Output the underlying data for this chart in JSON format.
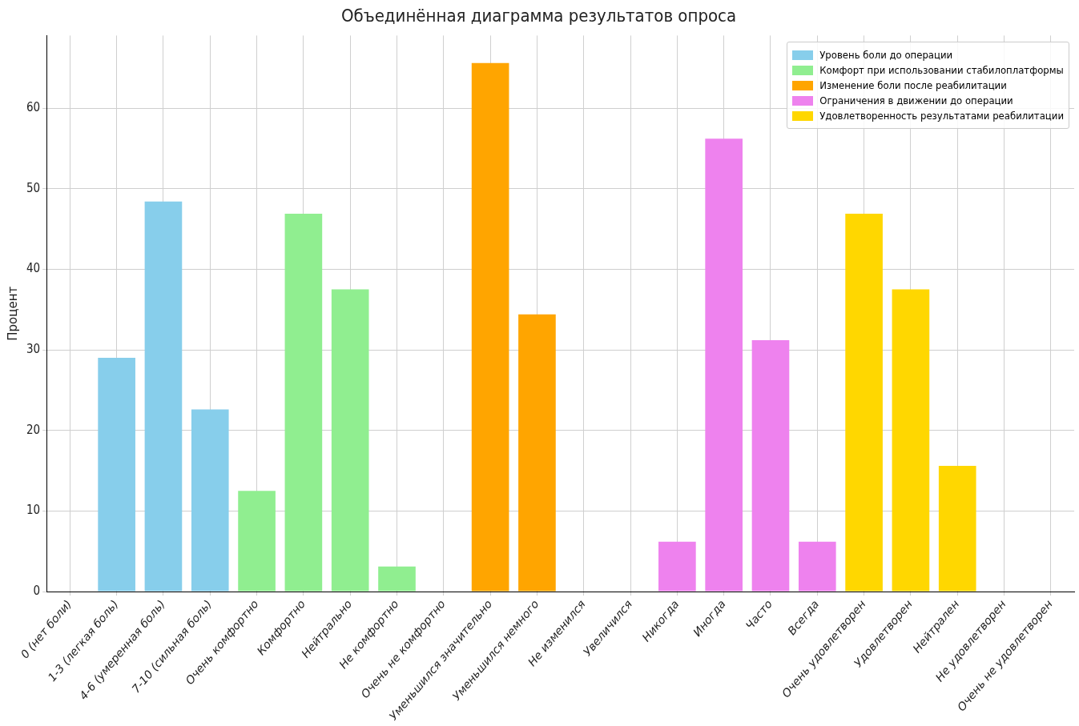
{
  "chart_data": {
    "type": "bar",
    "title": "Объединённая диаграмма результатов опроса",
    "ylabel": "Процент",
    "categories": [
      "0 (нет боли)",
      "1-3 (легкая боль)",
      "4-6 (умеренная боль)",
      "7-10 (сильная боль)",
      "Очень комфортно",
      "Комфортно",
      "Нейтрально",
      "Не комфортно",
      "Очень не комфортно",
      "Уменьшился значительно",
      "Уменьшился немного",
      "Не изменился",
      "Увеличился",
      "Никогда",
      "Иногда",
      "Часто",
      "Всегда",
      "Очень удовлетворен",
      "Удовлетворен",
      "Нейтрален",
      "Не удовлетворен",
      "Очень не удовлетворен"
    ],
    "series": [
      {
        "name": "Уровень боли до операции",
        "color": "#87ceeb",
        "values": [
          0,
          29.0,
          48.4,
          22.6,
          null,
          null,
          null,
          null,
          null,
          null,
          null,
          null,
          null,
          null,
          null,
          null,
          null,
          null,
          null,
          null,
          null,
          null
        ]
      },
      {
        "name": "Комфорт при использовании стабилоплатформы",
        "color": "#90ee90",
        "values": [
          null,
          null,
          null,
          null,
          12.5,
          46.9,
          37.5,
          3.1,
          0,
          null,
          null,
          null,
          null,
          null,
          null,
          null,
          null,
          null,
          null,
          null,
          null,
          null
        ]
      },
      {
        "name": "Изменение боли после реабилитации",
        "color": "#ffa500",
        "values": [
          null,
          null,
          null,
          null,
          null,
          null,
          null,
          null,
          null,
          65.6,
          34.4,
          0,
          0,
          null,
          null,
          null,
          null,
          null,
          null,
          null,
          null,
          null
        ]
      },
      {
        "name": "Ограничения в движении до операции",
        "color": "#ee82ee",
        "values": [
          null,
          null,
          null,
          null,
          null,
          null,
          null,
          null,
          null,
          null,
          null,
          null,
          null,
          6.2,
          56.2,
          31.2,
          6.2,
          null,
          null,
          null,
          null,
          null
        ]
      },
      {
        "name": "Удовлетворенность результатами реабилитации",
        "color": "#ffd700",
        "values": [
          null,
          null,
          null,
          null,
          null,
          null,
          null,
          null,
          null,
          null,
          null,
          null,
          null,
          null,
          null,
          null,
          null,
          46.9,
          37.5,
          15.6,
          0,
          0
        ]
      }
    ],
    "ylim": [
      0,
      69
    ],
    "yticks": [
      0,
      10,
      20,
      30,
      40,
      50,
      60
    ],
    "grid": true,
    "legend": "top right"
  }
}
